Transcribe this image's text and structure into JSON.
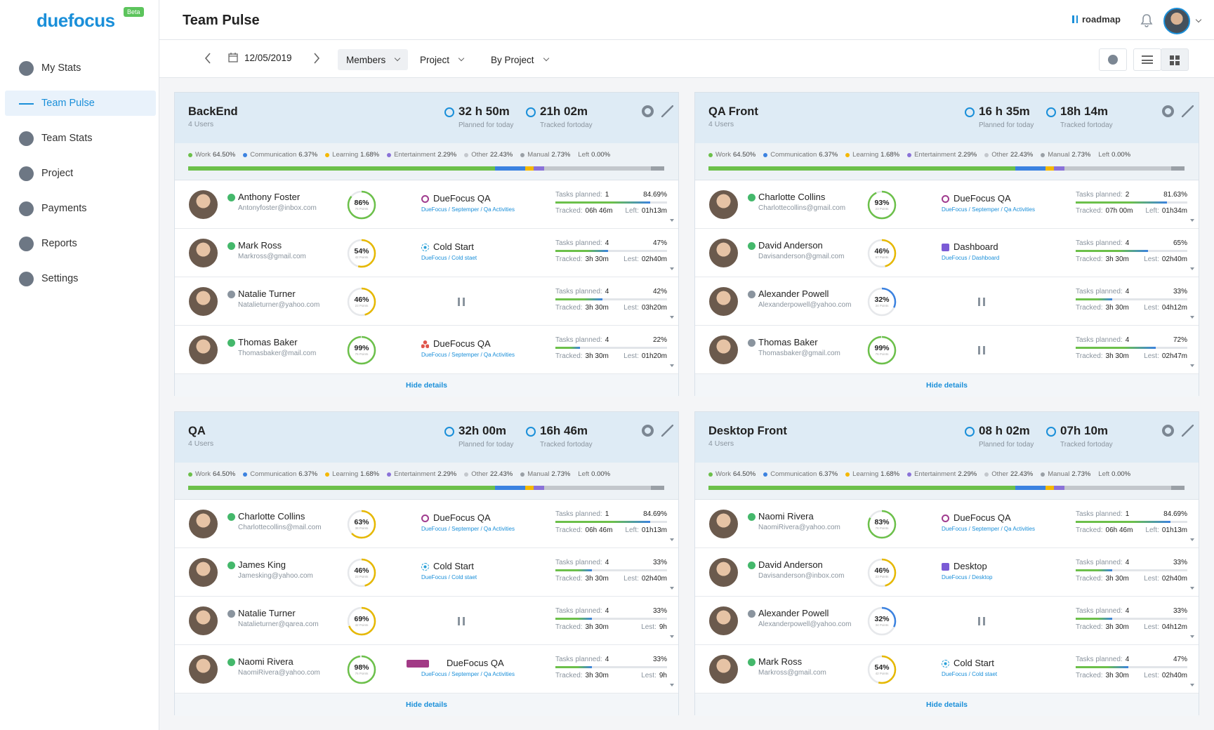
{
  "brand": {
    "name": "duefocus",
    "badge": "Beta"
  },
  "nav": {
    "items": [
      "My Stats",
      "Team Pulse",
      "Team Stats",
      "Project",
      "Payments",
      "Reports",
      "Settings"
    ],
    "active_index": 1
  },
  "header": {
    "title": "Team Pulse",
    "roadmap": "roadmap"
  },
  "toolbar": {
    "date": "12/05/2019",
    "filters": [
      "Members",
      "Project",
      "By Project"
    ]
  },
  "labels": {
    "planned": "Planned for today",
    "tracked_today": "Tracked fortoday",
    "tasks_planned": "Tasks planned:",
    "tracked": "Tracked:",
    "hide": "Hide details"
  },
  "panels": [
    {
      "name": "BackEnd",
      "users": "4 Users",
      "planned": "32 h 50m",
      "tracked": "21h 02m",
      "breakdown": [
        {
          "name": "Work",
          "value": 64.5,
          "value_label": "64.50%",
          "color": "#6cc04a"
        },
        {
          "name": "Communication",
          "value": 6.37,
          "value_label": "6.37%",
          "color": "#3b82e0"
        },
        {
          "name": "Learning",
          "value": 1.68,
          "value_label": "1.68%",
          "color": "#f5b800"
        },
        {
          "name": "Entertainment",
          "value": 2.29,
          "value_label": "2.29%",
          "color": "#8a72d8"
        },
        {
          "name": "Other",
          "value": 22.43,
          "value_label": "22.43%",
          "color": "#c3c7cc"
        },
        {
          "name": "Manual",
          "value": 2.73,
          "value_label": "2.73%",
          "color": "#9aa0a6"
        },
        {
          "name": "Left",
          "value": 0,
          "value_label": "0.00%"
        }
      ],
      "members": [
        {
          "name": "Anthony Foster",
          "email": "Antonyfoster@inbox.com",
          "status": "active",
          "score": 86,
          "score_label": "86%",
          "points": "76 Points",
          "project": "DueFocus QA",
          "path": "DueFocus / Septemper / Qa Activities",
          "icon": "ring",
          "tasks": 1,
          "progress": 84.69,
          "progress_label": "84.69%",
          "tracked": "06h 46m",
          "left_label": "Left:",
          "left": "01h13m"
        },
        {
          "name": "Mark Ross",
          "email": "Markross@gmail.com",
          "status": "active",
          "score": 54,
          "score_label": "54%",
          "points": "42 Points",
          "project": "Cold Start",
          "path": "DueFocus / Cold staet",
          "icon": "snow",
          "tasks": 4,
          "progress": 47,
          "progress_label": "47%",
          "tracked": "3h 30m",
          "left_label": "Lest:",
          "left": "02h40m"
        },
        {
          "name": "Natalie Turner",
          "email": "Natalieturner@yahoo.com",
          "status": "paused",
          "score": 46,
          "score_label": "46%",
          "points": "23 Points",
          "tasks": 4,
          "progress": 42,
          "progress_label": "42%",
          "tracked": "3h 30m",
          "left_label": "Lest:",
          "left": "03h20m"
        },
        {
          "name": "Thomas Baker",
          "email": "Thomasbaker@mail.com",
          "status": "active",
          "score": 99,
          "score_label": "99%",
          "points": "76 Points",
          "project": "DueFocus QA",
          "path": "DueFocus / Septemper / Qa Activities",
          "icon": "dots",
          "tasks": 4,
          "progress": 22,
          "progress_label": "22%",
          "tracked": "3h 30m",
          "left_label": "Lest:",
          "left": "01h20m"
        }
      ]
    },
    {
      "name": "QA Front",
      "users": "4 Users",
      "planned": "16 h 35m",
      "tracked": "18h 14m",
      "breakdown": [
        {
          "name": "Work",
          "value": 64.5,
          "value_label": "64.50%",
          "color": "#6cc04a"
        },
        {
          "name": "Communication",
          "value": 6.37,
          "value_label": "6.37%",
          "color": "#3b82e0"
        },
        {
          "name": "Learning",
          "value": 1.68,
          "value_label": "1.68%",
          "color": "#f5b800"
        },
        {
          "name": "Entertainment",
          "value": 2.29,
          "value_label": "2.29%",
          "color": "#8a72d8"
        },
        {
          "name": "Other",
          "value": 22.43,
          "value_label": "22.43%",
          "color": "#c3c7cc"
        },
        {
          "name": "Manual",
          "value": 2.73,
          "value_label": "2.73%",
          "color": "#9aa0a6"
        },
        {
          "name": "Left",
          "value": 0,
          "value_label": "0.00%"
        }
      ],
      "members": [
        {
          "name": "Charlotte Collins",
          "email": "Charlottecollins@gmail.com",
          "status": "active",
          "score": 93,
          "score_label": "93%",
          "points": "23 Points",
          "project": "DueFocus QA",
          "path": "DueFocus / Septemper / Qa Activities",
          "icon": "ring",
          "tasks": 2,
          "progress": 81.63,
          "progress_label": "81.63%",
          "tracked": "07h 00m",
          "left_label": "Left:",
          "left": "01h34m"
        },
        {
          "name": "David Anderson",
          "email": "Davisanderson@gmail.com",
          "status": "active",
          "score": 46,
          "score_label": "46%",
          "points": "67 Points",
          "project": "Dashboard",
          "path": "DueFocus / Dashboard",
          "icon": "square",
          "tasks": 4,
          "progress": 65,
          "progress_label": "65%",
          "tracked": "3h 30m",
          "left_label": "Lest:",
          "left": "02h40m"
        },
        {
          "name": "Alexander Powell",
          "email": "Alexanderpowell@yahoo.com",
          "status": "paused",
          "score": 32,
          "score_label": "32%",
          "points": "34 Points",
          "tasks": 4,
          "progress": 33,
          "progress_label": "33%",
          "tracked": "3h 30m",
          "left_label": "Lest:",
          "left": "04h12m"
        },
        {
          "name": "Thomas Baker",
          "email": "Thomasbaker@gmail.com",
          "status": "paused",
          "score": 99,
          "score_label": "99%",
          "points": "76 Points",
          "tasks": 4,
          "progress": 72,
          "progress_label": "72%",
          "tracked": "3h 30m",
          "left_label": "Lest:",
          "left": "02h47m"
        }
      ]
    },
    {
      "name": "QA",
      "users": "4 Users",
      "planned": "32h 00m",
      "tracked": "16h 46m",
      "breakdown": [
        {
          "name": "Work",
          "value": 64.5,
          "value_label": "64.50%",
          "color": "#6cc04a"
        },
        {
          "name": "Communication",
          "value": 6.37,
          "value_label": "6.37%",
          "color": "#3b82e0"
        },
        {
          "name": "Learning",
          "value": 1.68,
          "value_label": "1.68%",
          "color": "#f5b800"
        },
        {
          "name": "Entertainment",
          "value": 2.29,
          "value_label": "2.29%",
          "color": "#8a72d8"
        },
        {
          "name": "Other",
          "value": 22.43,
          "value_label": "22.43%",
          "color": "#c3c7cc"
        },
        {
          "name": "Manual",
          "value": 2.73,
          "value_label": "2.73%",
          "color": "#9aa0a6"
        },
        {
          "name": "Left",
          "value": 0,
          "value_label": "0.00%"
        }
      ],
      "members": [
        {
          "name": "Charlotte Collins",
          "email": "Charlottecollins@mail.com",
          "status": "active",
          "score": 63,
          "score_label": "63%",
          "points": "38 Points",
          "project": "DueFocus QA",
          "path": "DueFocus / Septemper / Qa Activities",
          "icon": "ring",
          "tasks": 1,
          "progress": 84.69,
          "progress_label": "84.69%",
          "tracked": "06h 46m",
          "left_label": "Left:",
          "left": "01h13m"
        },
        {
          "name": "James King",
          "email": "Jamesking@yahoo.com",
          "status": "active",
          "score": 46,
          "score_label": "46%",
          "points": "23 Points",
          "project": "Cold Start",
          "path": "DueFocus / Cold staet",
          "icon": "snow",
          "tasks": 4,
          "progress": 33,
          "progress_label": "33%",
          "tracked": "3h 30m",
          "left_label": "Lest:",
          "left": "02h40m"
        },
        {
          "name": "Natalie Turner",
          "email": "Natalieturner@qarea.com",
          "status": "paused",
          "score": 69,
          "score_label": "69%",
          "points": "42 Points",
          "tasks": 4,
          "progress": 33,
          "progress_label": "33%",
          "tracked": "3h 30m",
          "left_label": "Lest:",
          "left": "9h"
        },
        {
          "name": "Naomi Rivera",
          "email": "NaomiRivera@yahoo.com",
          "status": "active",
          "score": 98,
          "score_label": "98%",
          "points": "76 Points",
          "project": "DueFocus QA",
          "path": "DueFocus / Septemper / Qa Activities",
          "icon": "tag",
          "tasks": 4,
          "progress": 33,
          "progress_label": "33%",
          "tracked": "3h 30m",
          "left_label": "Lest:",
          "left": "9h"
        }
      ]
    },
    {
      "name": "Desktop Front",
      "users": "4 Users",
      "planned": "08 h 02m",
      "tracked": "07h 10m",
      "breakdown": [
        {
          "name": "Work",
          "value": 64.5,
          "value_label": "64.50%",
          "color": "#6cc04a"
        },
        {
          "name": "Communication",
          "value": 6.37,
          "value_label": "6.37%",
          "color": "#3b82e0"
        },
        {
          "name": "Learning",
          "value": 1.68,
          "value_label": "1.68%",
          "color": "#f5b800"
        },
        {
          "name": "Entertainment",
          "value": 2.29,
          "value_label": "2.29%",
          "color": "#8a72d8"
        },
        {
          "name": "Other",
          "value": 22.43,
          "value_label": "22.43%",
          "color": "#c3c7cc"
        },
        {
          "name": "Manual",
          "value": 2.73,
          "value_label": "2.73%",
          "color": "#9aa0a6"
        },
        {
          "name": "Left",
          "value": 0,
          "value_label": "0.00%"
        }
      ],
      "members": [
        {
          "name": "Naomi Rivera",
          "email": "NaomiRivera@yahoo.com",
          "status": "active",
          "score": 83,
          "score_label": "83%",
          "points": "76 Points",
          "project": "DueFocus QA",
          "path": "DueFocus / Septemper / Qa Activities",
          "icon": "ring",
          "tasks": 1,
          "progress": 84.69,
          "progress_label": "84.69%",
          "tracked": "06h 46m",
          "left_label": "Left:",
          "left": "01h13m"
        },
        {
          "name": "David Anderson",
          "email": "Davisanderson@inbox.com",
          "status": "active",
          "score": 46,
          "score_label": "46%",
          "points": "23 Points",
          "project": "Desktop",
          "path": "DueFocus / Desktop",
          "icon": "square",
          "tasks": 4,
          "progress": 33,
          "progress_label": "33%",
          "tracked": "3h 30m",
          "left_label": "Lest:",
          "left": "02h40m"
        },
        {
          "name": "Alexander Powell",
          "email": "Alexanderpowell@yahoo.com",
          "status": "paused",
          "score": 32,
          "score_label": "32%",
          "points": "34 Points",
          "tasks": 4,
          "progress": 33,
          "progress_label": "33%",
          "tracked": "3h 30m",
          "left_label": "Lest:",
          "left": "04h12m"
        },
        {
          "name": "Mark Ross",
          "email": "Markross@gmail.com",
          "status": "active",
          "score": 54,
          "score_label": "54%",
          "points": "42 Points",
          "project": "Cold Start",
          "path": "DueFocus / Cold staet",
          "icon": "snow",
          "tasks": 4,
          "progress": 47,
          "progress_label": "47%",
          "tracked": "3h 30m",
          "left_label": "Lest:",
          "left": "02h40m"
        }
      ]
    }
  ]
}
